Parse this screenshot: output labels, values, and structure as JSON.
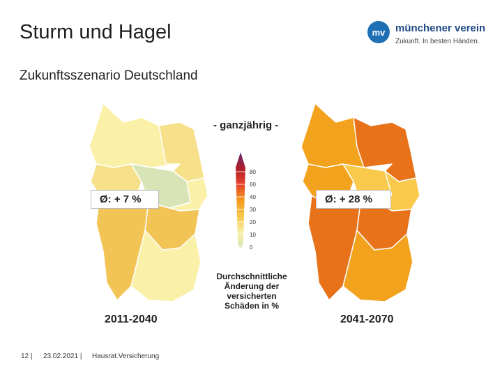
{
  "slide": {
    "title": "Sturm und Hagel",
    "subtitle": "Zukunftsszenario Deutschland"
  },
  "logo": {
    "mark": "mv",
    "name": "münchener verein",
    "slogan": "Zukunft. In besten Händen."
  },
  "legend": {
    "heading": "- ganzjährig -",
    "ticks": [
      "80",
      "60",
      "40",
      "30",
      "20",
      "10",
      "0"
    ],
    "caption": "Durchschnittliche Änderung der versicherten Schäden in %",
    "colors": [
      "#5e2a6e",
      "#b01f2a",
      "#e8412c",
      "#f39b1e",
      "#f6c94c",
      "#f7eea4",
      "#d9e6b8"
    ]
  },
  "maps": {
    "left": {
      "average": "Ø: + 7 %",
      "period": "2011-2040",
      "colors": {
        "low": "#faf0a8",
        "mid": "#f7e08a",
        "high": "#f2c456",
        "green": "#d8e4b6"
      }
    },
    "right": {
      "average": "Ø: + 28 %",
      "period": "2041-2070",
      "colors": {
        "light": "#f8c94a",
        "mid": "#f3a21e",
        "dark": "#e8721a"
      }
    }
  },
  "footer": {
    "page": "12 |",
    "date": "23.02.2021 |",
    "topic": "Hausrat.Versicherung"
  }
}
